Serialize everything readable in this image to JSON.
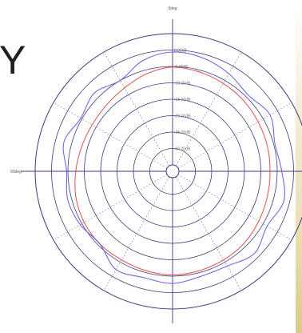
{
  "side_text": "Y",
  "chart_data": {
    "type": "polar-line",
    "angular_labels": [
      "0deg",
      "90deg",
      "180deg"
    ],
    "radial_labels": [
      "0.00dB",
      "-5.00dB",
      "-10.00dB",
      "-15.00dB",
      "-20.00dB",
      "-25.00dB",
      "-30.00dB"
    ],
    "radial_range_db": [
      -35,
      5
    ],
    "grid": true,
    "colors": {
      "series1": "#e04a4a",
      "series2": "#5a5ae0",
      "grid": "#3a3a80",
      "dotted": "#8a8aa8"
    },
    "series": [
      {
        "angles_deg": [
          0,
          15,
          30,
          45,
          60,
          75,
          90,
          105,
          120,
          135,
          150,
          165,
          180,
          195,
          210,
          225,
          240,
          255,
          270,
          285,
          300,
          315,
          330,
          345
        ],
        "values_db": [
          -5.2,
          -5.6,
          -6.0,
          -6.4,
          -6.8,
          -7.0,
          -7.2,
          -7.0,
          -6.6,
          -6.0,
          -5.8,
          -5.6,
          -5.4,
          -5.6,
          -5.8,
          -5.6,
          -5.8,
          -6.4,
          -7.4,
          -8.2,
          -8.6,
          -8.4,
          -7.6,
          -6.2
        ]
      },
      {
        "angles_deg": [
          0,
          15,
          30,
          45,
          60,
          75,
          90,
          105,
          120,
          135,
          150,
          165,
          180,
          195,
          210,
          225,
          240,
          255,
          270,
          285,
          300,
          315,
          330,
          345
        ],
        "values_db": [
          -0.6,
          -1.2,
          -2.6,
          -4.2,
          -2.6,
          -4.6,
          -3.6,
          -1.8,
          -3.6,
          -1.6,
          -3.6,
          -3.8,
          -2.8,
          -3.4,
          -2.4,
          -5.6,
          -4.4,
          -3.8,
          -4.6,
          -2.6,
          -4.6,
          -3.2,
          -5.0,
          -2.0
        ]
      }
    ]
  }
}
